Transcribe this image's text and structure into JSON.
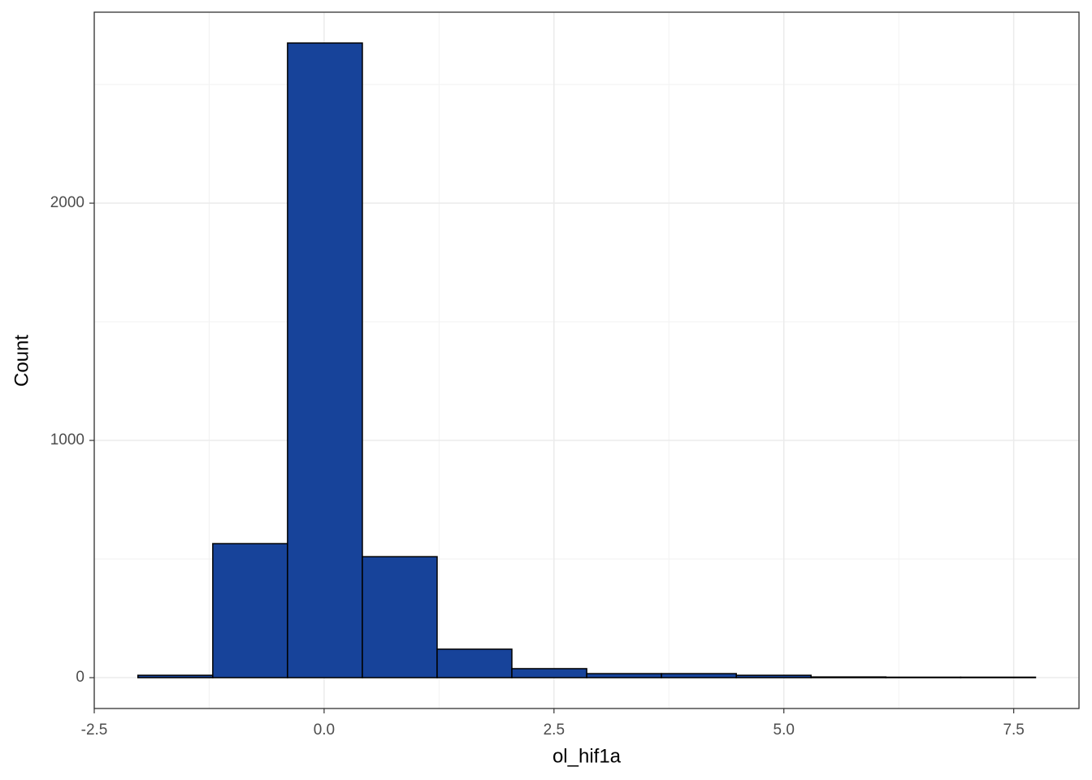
{
  "chart_data": {
    "type": "histogram",
    "x_label": "ol_hif1a",
    "y_label": "Count",
    "bins": [
      -2.025,
      -1.211,
      -0.398,
      0.416,
      1.229,
      2.042,
      2.856,
      3.669,
      4.483,
      5.296,
      6.11,
      6.923,
      7.737
    ],
    "counts": [
      10,
      565,
      2675,
      510,
      120,
      38,
      17,
      17,
      10,
      3,
      2,
      2
    ],
    "color": "#17439a",
    "edgecolor": "#000000",
    "xlim": [
      -2.5,
      8.21
    ],
    "ylim": [
      -130,
      2805
    ],
    "xticks": [
      -2.5,
      {
        "value": 0,
        "label": "0.0"
      },
      2.5,
      {
        "value": 5,
        "label": "5.0"
      },
      7.5
    ],
    "yticks": [
      0,
      1000,
      2000
    ],
    "xminor": [
      -1.25,
      1.25,
      3.75,
      6.25
    ],
    "yminor": [
      500,
      1500,
      2500
    ],
    "grid": true
  }
}
